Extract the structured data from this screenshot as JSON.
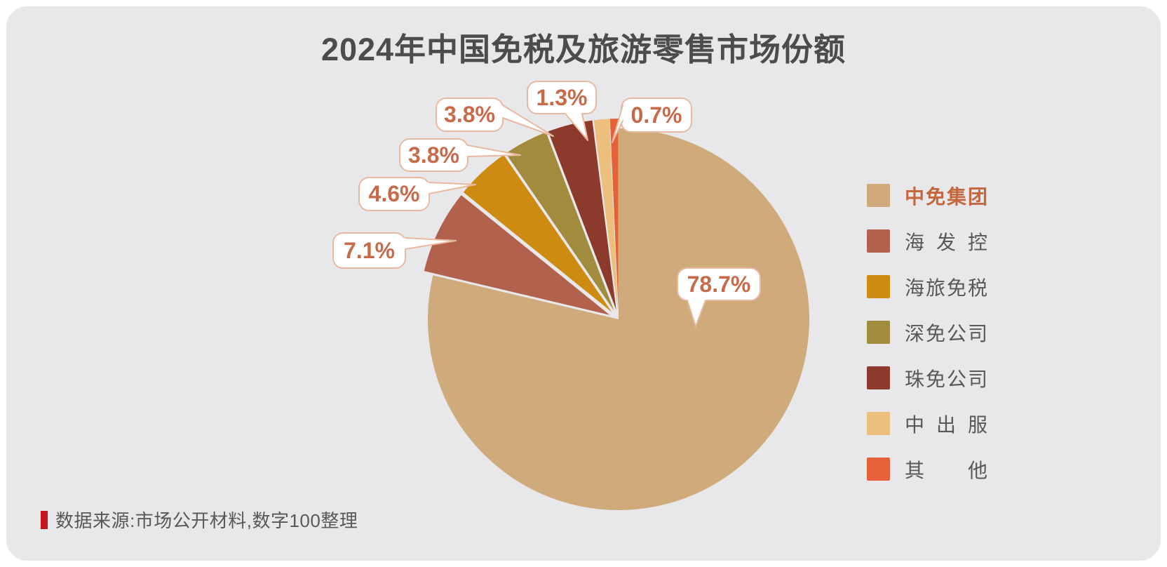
{
  "title": "2024年中国免税及旅游零售市场份额",
  "chart_data": {
    "type": "pie",
    "title": "2024年中国免税及旅游零售市场份额",
    "unit": "%",
    "direction": "clockwise",
    "start_angle": "12-oclock",
    "legend_position": "right",
    "series": [
      {
        "name": "中免集团",
        "value": 78.7,
        "label": "78.7%",
        "color": "#CFAB7C"
      },
      {
        "name": "海发控",
        "value": 7.1,
        "label": "7.1%",
        "color": "#B2624C"
      },
      {
        "name": "海旅免税",
        "value": 4.6,
        "label": "4.6%",
        "color": "#CE8B12"
      },
      {
        "name": "深免公司",
        "value": 3.8,
        "label": "3.8%",
        "color": "#A08C3C"
      },
      {
        "name": "珠免公司",
        "value": 3.8,
        "label": "3.8%",
        "color": "#8C3A2B"
      },
      {
        "name": "中出服",
        "value": 1.3,
        "label": "1.3%",
        "color": "#ECC07C"
      },
      {
        "name": "其他",
        "value": 0.7,
        "label": "0.7%",
        "color": "#E6603A"
      }
    ]
  },
  "source_note": {
    "text": "数据来源:市场公开材料,数字100整理"
  },
  "colors": {
    "background": "#FFFFFF",
    "panel": "#E8E8EA",
    "title_text": "#4C4C4E",
    "legend_text": "#57585A",
    "legend_highlight_text": "#C4673F",
    "callout_text": "#C76A4A",
    "callout_border": "#E8B9A0",
    "callout_fill": "#FFFFFF",
    "source_text": "#57585A",
    "source_bar": "#C5161F"
  }
}
